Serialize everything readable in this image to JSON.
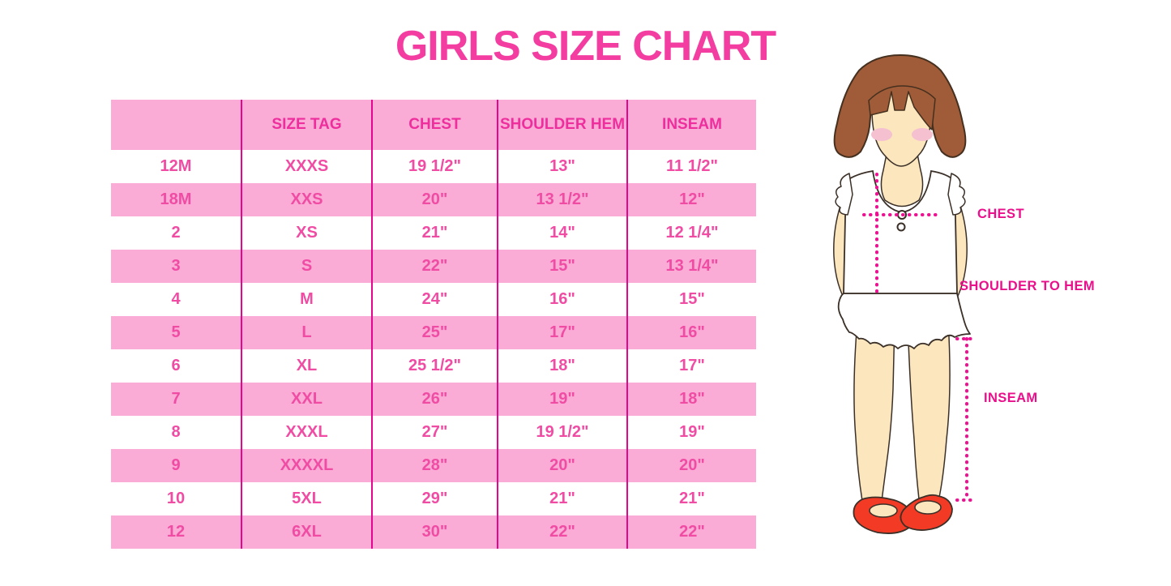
{
  "page": {
    "title": "GIRLS SIZE CHART"
  },
  "table": {
    "columns": [
      "",
      "SIZE TAG",
      "CHEST",
      "SHOULDER HEM",
      "INSEAM"
    ],
    "rows": [
      [
        "12M",
        "XXXS",
        "19 1/2\"",
        "13\"",
        "11 1/2\""
      ],
      [
        "18M",
        "XXS",
        "20\"",
        "13 1/2\"",
        "12\""
      ],
      [
        "2",
        "XS",
        "21\"",
        "14\"",
        "12 1/4\""
      ],
      [
        "3",
        "S",
        "22\"",
        "15\"",
        "13 1/4\""
      ],
      [
        "4",
        "M",
        "24\"",
        "16\"",
        "15\""
      ],
      [
        "5",
        "L",
        "25\"",
        "17\"",
        "16\""
      ],
      [
        "6",
        "XL",
        "25 1/2\"",
        "18\"",
        "17\""
      ],
      [
        "7",
        "XXL",
        "26\"",
        "19\"",
        "18\""
      ],
      [
        "8",
        "XXXL",
        "27\"",
        "19 1/2\"",
        "19\""
      ],
      [
        "9",
        "XXXXL",
        "28\"",
        "20\"",
        "20\""
      ],
      [
        "10",
        "5XL",
        "29\"",
        "21\"",
        "21\""
      ],
      [
        "12",
        "6XL",
        "30\"",
        "22\"",
        "22\""
      ]
    ]
  },
  "figure": {
    "labels": {
      "chest": "CHEST",
      "shoulder_to_hem": "SHOULDER TO HEM",
      "inseam": "INSEAM"
    }
  },
  "colors": {
    "title_pink": "#F33DA1",
    "stripe_pink": "#FAACD6",
    "separator_magenta": "#E5058F",
    "cell_text_pink": "#F04CA4",
    "label_magenta": "#EA0F8B",
    "dotted_line_magenta": "#EC1190",
    "hair_brown": "#A05C38",
    "skin": "#FBE6BE",
    "blush": "#F5C0D0",
    "shoe_red": "#F23A25"
  }
}
